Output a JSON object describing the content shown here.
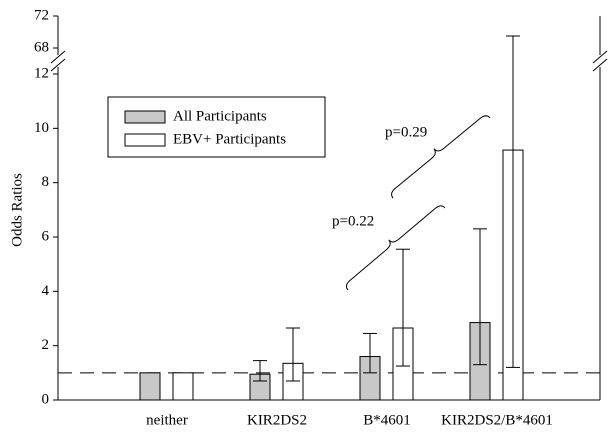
{
  "chart_data": {
    "type": "bar",
    "y_label": "Odds Ratios",
    "categories": [
      "neither",
      "KIR2DS2",
      "B*4601",
      "KIR2DS2/B*4601"
    ],
    "series": [
      {
        "name": "All Participants",
        "color": "#c8c8c8",
        "values": [
          1.0,
          0.95,
          1.6,
          2.85
        ],
        "lower": [
          null,
          0.7,
          1.0,
          1.3
        ],
        "upper": [
          null,
          1.45,
          2.45,
          6.3
        ]
      },
      {
        "name": "EBV+ Participants",
        "color": "#ffffff",
        "values": [
          1.0,
          1.35,
          2.65,
          9.2
        ],
        "lower": [
          null,
          0.7,
          1.25,
          1.2
        ],
        "upper": [
          null,
          2.65,
          5.55,
          69.5
        ]
      }
    ],
    "ylim": [
      0,
      12
    ],
    "yticks": [
      0,
      2,
      4,
      6,
      8,
      10,
      12
    ],
    "ybreak": {
      "ylim": [
        68,
        72
      ],
      "yticks": [
        68,
        72
      ]
    },
    "reference_line": 1,
    "annotations": [
      "p=0.22",
      "p=0.29"
    ],
    "legend": "upper left"
  }
}
